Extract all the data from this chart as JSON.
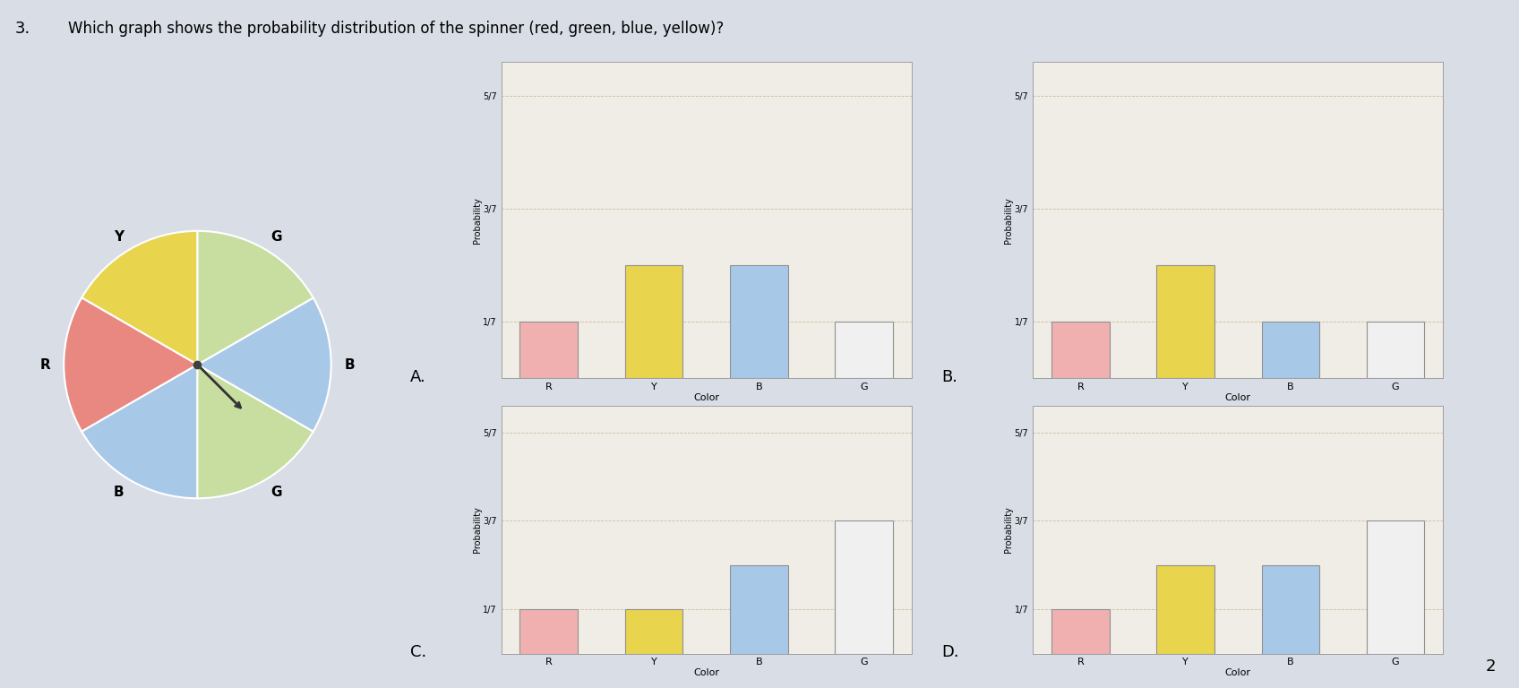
{
  "question_num": "3.",
  "question_text": "Which graph shows the probability distribution of the spinner (red, green, blue, yellow)?",
  "answer_label": "2",
  "spinner_sizes": [
    1,
    1,
    1,
    1,
    1,
    1
  ],
  "spinner_colors": [
    "#e8d44d",
    "#e88880",
    "#a8c8e8",
    "#c8dea0",
    "#a8c8e8",
    "#c8dea0"
  ],
  "spinner_labels": [
    "Y",
    "R",
    "B",
    "G",
    "B",
    "G"
  ],
  "charts": {
    "A": {
      "label": "A.",
      "categories": [
        "R",
        "Y",
        "B",
        "G"
      ],
      "values": [
        0.1429,
        0.2857,
        0.2857,
        0.1429
      ],
      "bar_colors": [
        "#f0b0b0",
        "#e8d44d",
        "#a8c8e8",
        "#f0f0f0"
      ],
      "yticks": [
        0.1429,
        0.4286,
        0.7143
      ],
      "ytick_labels": [
        "1/7",
        "3/7",
        "5/7"
      ]
    },
    "B": {
      "label": "B.",
      "categories": [
        "R",
        "Y",
        "B",
        "G"
      ],
      "values": [
        0.1429,
        0.2857,
        0.1429,
        0.1429
      ],
      "bar_colors": [
        "#f0b0b0",
        "#e8d44d",
        "#a8c8e8",
        "#f0f0f0"
      ],
      "yticks": [
        0.1429,
        0.4286,
        0.7143
      ],
      "ytick_labels": [
        "1/7",
        "3/7",
        "5/7"
      ]
    },
    "C": {
      "label": "C.",
      "categories": [
        "R",
        "Y",
        "B",
        "G"
      ],
      "values": [
        0.1429,
        0.1429,
        0.2857,
        0.4286
      ],
      "bar_colors": [
        "#f0b0b0",
        "#e8d44d",
        "#a8c8e8",
        "#f0f0f0"
      ],
      "yticks": [
        0.1429,
        0.4286,
        0.7143
      ],
      "ytick_labels": [
        "1/7",
        "3/7",
        "5/7"
      ]
    },
    "D": {
      "label": "D.",
      "categories": [
        "R",
        "Y",
        "B",
        "G"
      ],
      "values": [
        0.1429,
        0.2857,
        0.2857,
        0.4286
      ],
      "bar_colors": [
        "#f0b0b0",
        "#e8d44d",
        "#a8c8e8",
        "#f0f0f0"
      ],
      "yticks": [
        0.1429,
        0.4286,
        0.7143
      ],
      "ytick_labels": [
        "1/7",
        "3/7",
        "5/7"
      ]
    }
  },
  "background_color": "#d8dde6",
  "chart_bg": "#f0ede6",
  "grid_color": "#c8b898",
  "xlabel": "Color",
  "ylabel": "Probability",
  "ylim": [
    0,
    0.8
  ]
}
